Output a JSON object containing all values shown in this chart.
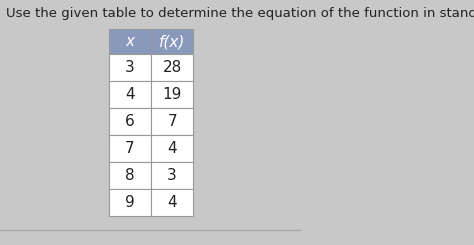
{
  "title": "Use the given table to determine the equation of the function in standard form.",
  "col_headers": [
    "x",
    "f(x)"
  ],
  "rows": [
    [
      3,
      28
    ],
    [
      4,
      19
    ],
    [
      6,
      7
    ],
    [
      7,
      4
    ],
    [
      8,
      3
    ],
    [
      9,
      4
    ]
  ],
  "header_bg": "#8899bb",
  "row_bg": "#ffffff",
  "border_color": "#999999",
  "text_color": "#222222",
  "header_text_color": "#ffffff",
  "bg_color": "#c8c8c8",
  "title_fontsize": 9.5,
  "cell_fontsize": 11
}
